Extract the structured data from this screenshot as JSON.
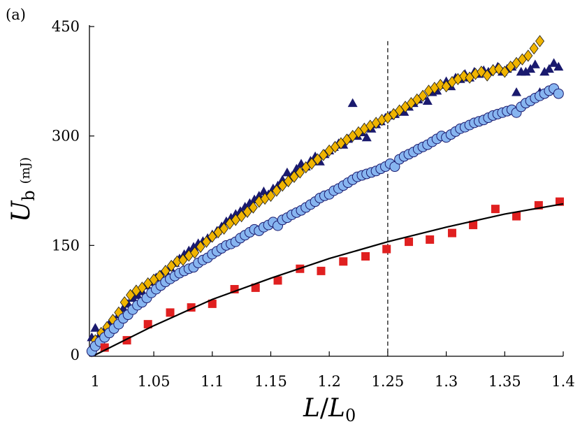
{
  "panel_label": "(a)",
  "chart_data": {
    "type": "scatter",
    "xlabel": {
      "italic": "L",
      "sep": "/",
      "italic2": "L",
      "sub2": "0"
    },
    "ylabel": {
      "italic": "U",
      "sub": "b",
      "unit": "(mJ)"
    },
    "xlim": [
      0.995,
      1.4
    ],
    "ylim": [
      0,
      450
    ],
    "x_ticks": [
      1,
      1.05,
      1.1,
      1.15,
      1.2,
      1.25,
      1.3,
      1.35,
      1.4
    ],
    "x_tick_labels": [
      "1",
      "1.05",
      "1.1",
      "1.15",
      "1.2",
      "1.25",
      "1.3",
      "1.35",
      "1.4"
    ],
    "y_ticks": [
      0,
      150,
      300,
      450
    ],
    "y_tick_labels": [
      "0",
      "150",
      "300",
      "450"
    ],
    "grid": false,
    "reference_line": {
      "x": 1.25,
      "style": "dashed",
      "y_top": 430
    },
    "fit_curve": {
      "color": "#000000",
      "x": [
        1.0,
        1.05,
        1.1,
        1.15,
        1.2,
        1.25,
        1.3,
        1.35,
        1.4
      ],
      "y": [
        0,
        40,
        76,
        105,
        132,
        155,
        175,
        193,
        207
      ]
    },
    "series": [
      {
        "marker": "triangle",
        "color": "#1a1a6e",
        "x": [
          0.997,
          1.0,
          1.004,
          1.008,
          1.012,
          1.016,
          1.02,
          1.024,
          1.028,
          1.032,
          1.036,
          1.04,
          1.044,
          1.048,
          1.052,
          1.056,
          1.06,
          1.064,
          1.068,
          1.072,
          1.076,
          1.08,
          1.084,
          1.088,
          1.092,
          1.096,
          1.1,
          1.104,
          1.108,
          1.112,
          1.116,
          1.12,
          1.124,
          1.128,
          1.132,
          1.136,
          1.14,
          1.144,
          1.148,
          1.152,
          1.156,
          1.16,
          1.164,
          1.168,
          1.172,
          1.176,
          1.18,
          1.184,
          1.188,
          1.192,
          1.196,
          1.2,
          1.204,
          1.208,
          1.212,
          1.216,
          1.22,
          1.224,
          1.228,
          1.232,
          1.236,
          1.24,
          1.244,
          1.248,
          1.252,
          1.256,
          1.26,
          1.264,
          1.268,
          1.272,
          1.276,
          1.28,
          1.284,
          1.288,
          1.292,
          1.296,
          1.3,
          1.304,
          1.308,
          1.312,
          1.316,
          1.32,
          1.324,
          1.328,
          1.332,
          1.336,
          1.34,
          1.344,
          1.348,
          1.352,
          1.356,
          1.36,
          1.364,
          1.368,
          1.372,
          1.376,
          1.38,
          1.384,
          1.388,
          1.392,
          1.396
        ],
        "y": [
          24,
          37,
          28,
          34,
          43,
          48,
          55,
          64,
          70,
          78,
          82,
          87,
          95,
          100,
          106,
          110,
          115,
          120,
          126,
          132,
          138,
          143,
          148,
          153,
          156,
          160,
          165,
          170,
          176,
          183,
          188,
          193,
          197,
          203,
          208,
          213,
          218,
          224,
          220,
          228,
          232,
          240,
          250,
          245,
          255,
          262,
          258,
          266,
          272,
          265,
          275,
          280,
          285,
          290,
          288,
          296,
          345,
          300,
          305,
          298,
          310,
          316,
          320,
          325,
          328,
          330,
          336,
          333,
          340,
          345,
          350,
          355,
          348,
          360,
          362,
          370,
          375,
          368,
          380,
          378,
          385,
          380,
          388,
          385,
          390,
          388,
          392,
          395,
          388,
          392,
          395,
          360,
          388,
          388,
          392,
          398,
          360,
          388,
          392,
          400,
          395
        ]
      },
      {
        "marker": "diamond",
        "color": "#f0b400",
        "x": [
          0.997,
          1.0,
          1.005,
          1.01,
          1.015,
          1.02,
          1.025,
          1.03,
          1.035,
          1.04,
          1.045,
          1.05,
          1.055,
          1.06,
          1.065,
          1.07,
          1.075,
          1.08,
          1.085,
          1.09,
          1.095,
          1.1,
          1.105,
          1.11,
          1.115,
          1.12,
          1.125,
          1.13,
          1.135,
          1.14,
          1.145,
          1.15,
          1.155,
          1.16,
          1.165,
          1.17,
          1.175,
          1.18,
          1.185,
          1.19,
          1.195,
          1.2,
          1.205,
          1.21,
          1.215,
          1.22,
          1.225,
          1.23,
          1.235,
          1.24,
          1.245,
          1.25,
          1.255,
          1.26,
          1.265,
          1.27,
          1.275,
          1.28,
          1.285,
          1.29,
          1.295,
          1.3,
          1.305,
          1.31,
          1.315,
          1.32,
          1.325,
          1.33,
          1.335,
          1.34,
          1.345,
          1.35,
          1.355,
          1.36,
          1.365,
          1.37,
          1.375,
          1.38
        ],
        "y": [
          5,
          20,
          30,
          38,
          48,
          58,
          72,
          82,
          88,
          92,
          98,
          103,
          108,
          115,
          122,
          128,
          130,
          136,
          140,
          148,
          155,
          162,
          168,
          173,
          180,
          185,
          190,
          196,
          202,
          210,
          214,
          218,
          225,
          232,
          238,
          244,
          250,
          257,
          262,
          268,
          274,
          280,
          285,
          290,
          295,
          300,
          305,
          310,
          314,
          318,
          322,
          325,
          330,
          335,
          340,
          345,
          350,
          355,
          362,
          366,
          370,
          368,
          374,
          378,
          382,
          380,
          385,
          388,
          383,
          390,
          392,
          388,
          395,
          400,
          405,
          410,
          420,
          430
        ]
      },
      {
        "marker": "circle",
        "color": "#87b5f0",
        "x": [
          0.997,
          1.0,
          1.004,
          1.008,
          1.012,
          1.016,
          1.02,
          1.024,
          1.028,
          1.032,
          1.036,
          1.04,
          1.044,
          1.048,
          1.052,
          1.056,
          1.06,
          1.064,
          1.068,
          1.072,
          1.076,
          1.08,
          1.084,
          1.088,
          1.092,
          1.096,
          1.1,
          1.104,
          1.108,
          1.112,
          1.116,
          1.12,
          1.124,
          1.128,
          1.132,
          1.136,
          1.14,
          1.144,
          1.148,
          1.152,
          1.156,
          1.16,
          1.164,
          1.168,
          1.172,
          1.176,
          1.18,
          1.184,
          1.188,
          1.192,
          1.196,
          1.2,
          1.204,
          1.208,
          1.212,
          1.216,
          1.22,
          1.224,
          1.228,
          1.232,
          1.236,
          1.24,
          1.244,
          1.248,
          1.252,
          1.256,
          1.26,
          1.264,
          1.268,
          1.272,
          1.276,
          1.28,
          1.284,
          1.288,
          1.292,
          1.296,
          1.3,
          1.304,
          1.308,
          1.312,
          1.316,
          1.32,
          1.324,
          1.328,
          1.332,
          1.336,
          1.34,
          1.344,
          1.348,
          1.352,
          1.356,
          1.36,
          1.364,
          1.368,
          1.372,
          1.376,
          1.38,
          1.384,
          1.388,
          1.392,
          1.396
        ],
        "y": [
          5,
          12,
          18,
          24,
          30,
          36,
          42,
          50,
          55,
          62,
          68,
          72,
          78,
          85,
          90,
          95,
          100,
          104,
          108,
          112,
          115,
          118,
          120,
          126,
          130,
          133,
          138,
          142,
          146,
          150,
          152,
          155,
          160,
          164,
          168,
          172,
          170,
          175,
          178,
          182,
          177,
          185,
          188,
          192,
          195,
          198,
          202,
          206,
          210,
          215,
          218,
          220,
          225,
          228,
          232,
          236,
          240,
          244,
          246,
          248,
          250,
          252,
          255,
          258,
          262,
          258,
          268,
          272,
          275,
          278,
          282,
          285,
          288,
          292,
          296,
          300,
          298,
          302,
          306,
          310,
          312,
          315,
          318,
          320,
          322,
          325,
          328,
          330,
          332,
          334,
          336,
          332,
          340,
          345,
          348,
          352,
          355,
          358,
          362,
          365,
          358
        ]
      },
      {
        "marker": "square",
        "color": "#e02020",
        "x": [
          1.008,
          1.027,
          1.045,
          1.064,
          1.082,
          1.1,
          1.119,
          1.137,
          1.156,
          1.175,
          1.193,
          1.212,
          1.231,
          1.249,
          1.268,
          1.286,
          1.305,
          1.323,
          1.342,
          1.36,
          1.379,
          1.397
        ],
        "y": [
          10,
          20,
          42,
          58,
          65,
          70,
          90,
          92,
          102,
          118,
          115,
          128,
          135,
          145,
          155,
          158,
          167,
          178,
          200,
          190,
          205,
          210
        ]
      }
    ]
  }
}
